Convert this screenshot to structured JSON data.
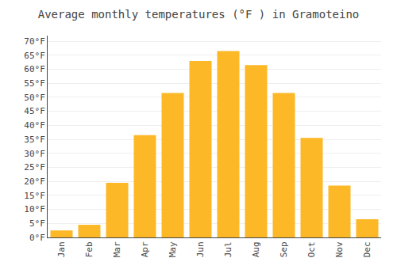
{
  "chart_data": {
    "type": "bar",
    "title": "Average monthly temperatures (°F ) in Gramoteino",
    "categories": [
      "Jan",
      "Feb",
      "Mar",
      "Apr",
      "May",
      "Jun",
      "Jul",
      "Aug",
      "Sep",
      "Oct",
      "Nov",
      "Dec"
    ],
    "values": [
      2.5,
      4.5,
      19.5,
      36.5,
      51.5,
      63.0,
      66.5,
      61.5,
      51.5,
      35.5,
      18.5,
      6.5
    ],
    "color": "#FDB827",
    "ylim": [
      0,
      72
    ],
    "yticks": [
      {
        "value": 0,
        "label": "0°F"
      },
      {
        "value": 5,
        "label": "5°F"
      },
      {
        "value": 10,
        "label": "10°F"
      },
      {
        "value": 15,
        "label": "15°F"
      },
      {
        "value": 20,
        "label": "20°F"
      },
      {
        "value": 25,
        "label": "25°F"
      },
      {
        "value": 30,
        "label": "30°F"
      },
      {
        "value": 35,
        "label": "35°F"
      },
      {
        "value": 40,
        "label": "40°F"
      },
      {
        "value": 45,
        "label": "45°F"
      },
      {
        "value": 50,
        "label": "50°F"
      },
      {
        "value": 55,
        "label": "55°F"
      },
      {
        "value": 60,
        "label": "60°F"
      },
      {
        "value": 65,
        "label": "65°F"
      },
      {
        "value": 70,
        "label": "70°F"
      }
    ],
    "grid": true
  }
}
